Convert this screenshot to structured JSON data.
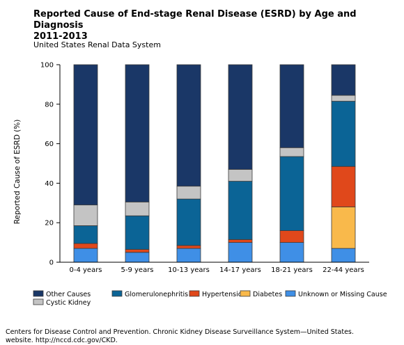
{
  "chart_data": {
    "type": "bar",
    "stacked": true,
    "title_line1": "Reported Cause of End-stage Renal Disease (ESRD) by Age and Diagnosis",
    "title_line2": "2011-2013",
    "subtitle": "United States Renal Data System",
    "ylabel": "Reported Cause of ESRD (%)",
    "xlabel": "",
    "ylim": [
      0,
      100
    ],
    "yticks": [
      0,
      20,
      40,
      60,
      80,
      100
    ],
    "categories": [
      "0-4 years",
      "5-9 years",
      "10-13 years",
      "14-17 years",
      "18-21 years",
      "22-44 years"
    ],
    "series": [
      {
        "name": "Unknown or Missing Cause",
        "color": "#3f8fe6",
        "values": [
          7,
          5,
          7,
          10,
          10,
          7
        ]
      },
      {
        "name": "Diabetes",
        "color": "#f9b94b",
        "values": [
          0,
          0,
          0,
          0,
          0,
          21
        ]
      },
      {
        "name": "Hypertension",
        "color": "#e0481b",
        "values": [
          2.5,
          1.5,
          1.5,
          1.5,
          6,
          20.5
        ]
      },
      {
        "name": "Glomerulonephritis",
        "color": "#0b6496",
        "values": [
          9,
          17,
          23.5,
          29.5,
          37.5,
          33
        ]
      },
      {
        "name": "Cystic Kidney",
        "color": "#c4c4c4",
        "values": [
          10.5,
          7,
          6.5,
          6,
          4.5,
          3
        ]
      },
      {
        "name": "Other Causes",
        "color": "#1a3767",
        "values": [
          71,
          69.5,
          61.5,
          53,
          42,
          15.5
        ]
      }
    ],
    "legend_order": [
      "Other Causes",
      "Glomerulonephritis",
      "Hypertension",
      "Diabetes",
      "Unknown or Missing Cause",
      "Cystic Kidney"
    ],
    "legend_position": "bottom",
    "grid": false
  },
  "footer": {
    "line1": "Centers for Disease Control and Prevention. Chronic Kidney Disease Surveillance System—United States.",
    "line2": "website. http://nccd.cdc.gov/CKD."
  }
}
